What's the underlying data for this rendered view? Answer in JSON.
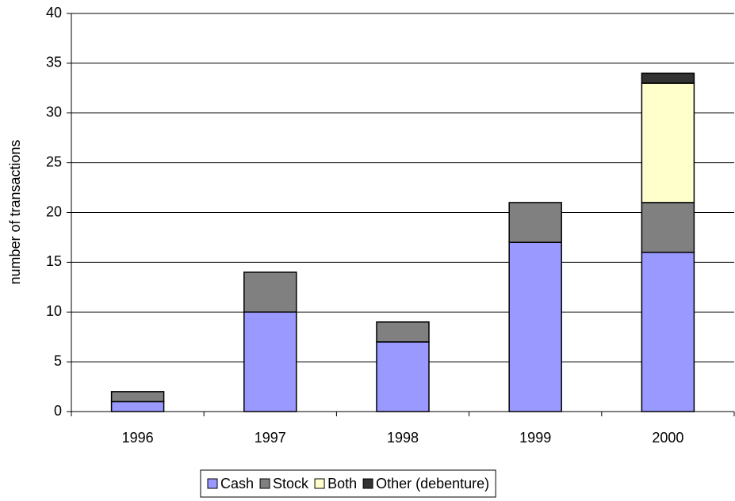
{
  "chart_data": {
    "type": "stacked_bar",
    "y_label": "number of transactions",
    "categories": [
      "1996",
      "1997",
      "1998",
      "1999",
      "2000"
    ],
    "series": [
      {
        "name": "Cash",
        "color": "#9999ff",
        "values": [
          1,
          10,
          7,
          17,
          16
        ]
      },
      {
        "name": "Stock",
        "color": "#808080",
        "values": [
          1,
          4,
          2,
          4,
          5
        ]
      },
      {
        "name": "Both",
        "color": "#ffffcc",
        "values": [
          0,
          0,
          0,
          0,
          12
        ]
      },
      {
        "name": "Other (debenture)",
        "color": "#333333",
        "values": [
          0,
          0,
          0,
          0,
          1
        ]
      }
    ],
    "ylim": [
      0,
      40
    ],
    "yticks": [
      0,
      5,
      10,
      15,
      20,
      25,
      30,
      35,
      40
    ],
    "grid": true,
    "legend": "bottom"
  }
}
